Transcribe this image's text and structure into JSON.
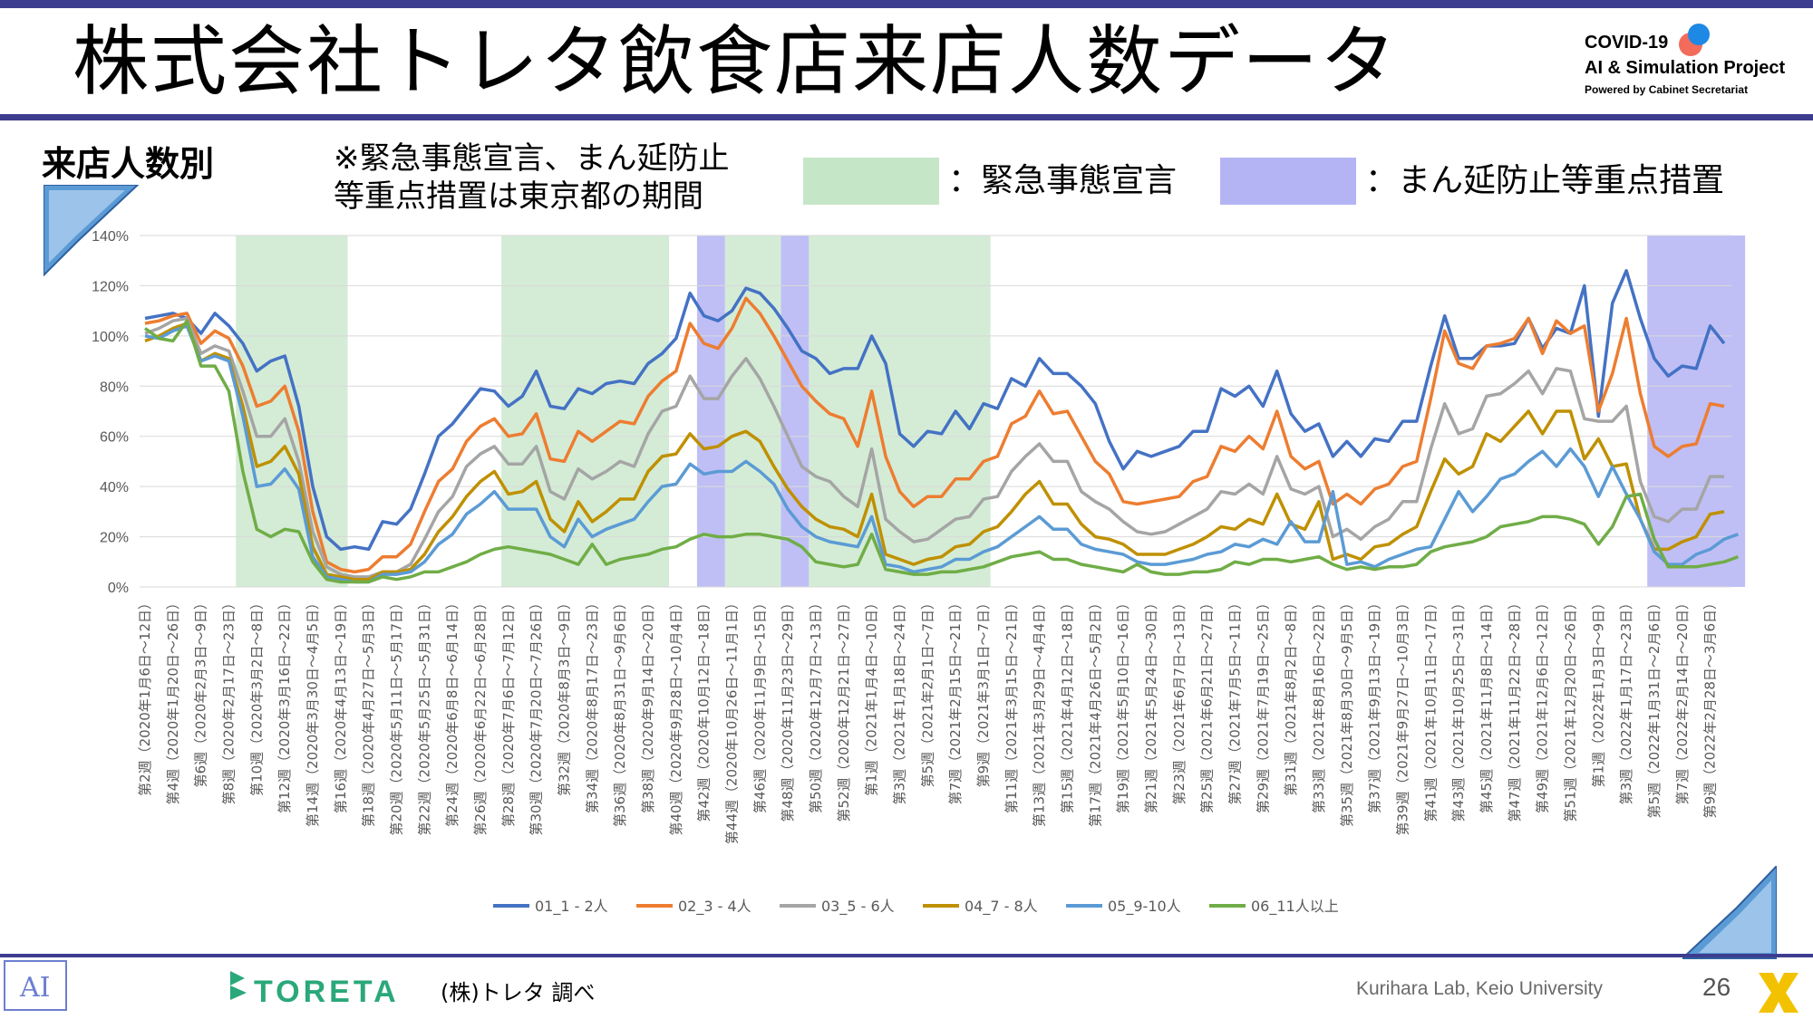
{
  "slide": {
    "title": "株式会社トレタ飲食店来店人数データ",
    "section_label": "来店人数別",
    "note_line1": "※緊急事態宣言、まん延防止",
    "note_line2": "等重点措置は東京都の期間",
    "legend_emergency": "：緊急事態宣言",
    "legend_manbou": "：まん延防止等重点措置",
    "source": "(株)トレタ 調べ",
    "credit": "Kurihara Lab, Keio University",
    "page_number": "26",
    "toreta_logo": "TORETA",
    "logo": {
      "line1": "COVID-19",
      "line2": "AI & Simulation Project",
      "line3": "Powered by Cabinet Secretariat"
    }
  },
  "colors": {
    "accent": "#3d3d8f",
    "emergency_band": "#c6e6c8",
    "manbou_band": "#b4b4f5"
  },
  "chart_data": {
    "type": "line",
    "ylim": [
      0,
      1.4
    ],
    "yticks": [
      0,
      0.2,
      0.4,
      0.6,
      0.8,
      1.0,
      1.2,
      1.4
    ],
    "ytick_labels": [
      "0%",
      "20%",
      "40%",
      "60%",
      "80%",
      "100%",
      "120%",
      "140%"
    ],
    "grid": true,
    "legend_position": "bottom",
    "x_labels": [
      "第2週（2020年1月6日～12日）",
      "第4週（2020年1月20日～26日）",
      "第6週（2020年2月3日～9日）",
      "第8週（2020年2月17日～23日）",
      "第10週（2020年3月2日～8日）",
      "第12週（2020年3月16日～22日）",
      "第14週（2020年3月30日～4月5日）",
      "第16週（2020年4月13日～19日）",
      "第18週（2020年4月27日～5月3日）",
      "第20週（2020年5月11日～5月17日）",
      "第22週（2020年5月25日～5月31日）",
      "第24週（2020年6月8日～6月14日）",
      "第26週（2020年6月22日～6月28日）",
      "第28週（2020年7月6日～7月12日）",
      "第30週（2020年7月20日～7月26日）",
      "第32週（2020年8月3日～9日）",
      "第34週（2020年8月17日～23日）",
      "第36週（2020年8月31日～9月6日）",
      "第38週（2020年9月14日～20日）",
      "第40週（2020年9月28日～10月4日）",
      "第42週（2020年10月12日～18日）",
      "第44週（2020年10月26日～11月1日）",
      "第46週（2020年11月9日～15日）",
      "第48週（2020年11月23日～29日）",
      "第50週（2020年12月7日～13日）",
      "第52週（2020年12月21日～27日）",
      "第1週（2021年1月4日～10日）",
      "第3週（2021年1月18日～24日）",
      "第5週（2021年2月1日～7日）",
      "第7週（2021年2月15日～21日）",
      "第9週（2021年3月1日～7日）",
      "第11週（2021年3月15日～21日）",
      "第13週（2021年3月29日～4月4日）",
      "第15週（2021年4月12日～18日）",
      "第17週（2021年4月26日～5月2日）",
      "第19週（2021年5月10日～16日）",
      "第21週（2021年5月24日～30日）",
      "第23週（2021年6月7日～13日）",
      "第25週（2021年6月21日～27日）",
      "第27週（2021年7月5日～11日）",
      "第29週（2021年7月19日～25日）",
      "第31週（2021年8月2日～8日）",
      "第33週（2021年8月16日～22日）",
      "第35週（2021年8月30日～9月5日）",
      "第37週（2021年9月13日～19日）",
      "第39週（2021年9月27日～10月3日）",
      "第41週（2021年10月11日～17日）",
      "第43週（2021年10月25日～31日）",
      "第45週（2021年11月8日～14日）",
      "第47週（2021年11月22日～28日）",
      "第49週（2021年12月6日～12日）",
      "第51週（2021年12月20日～26日）",
      "第1週（2022年1月3日～9日）",
      "第3週（2022年1月17日～23日）",
      "第5週（2022年1月31日～2月6日）",
      "第7週（2022年2月14日～20日）",
      "第9週（2022年2月28日～3月6日）"
    ],
    "emergency_periods": [
      [
        7,
        14
      ],
      [
        26,
        37
      ],
      [
        42,
        45
      ],
      [
        48,
        60
      ]
    ],
    "manbou_periods": [
      [
        40,
        41
      ],
      [
        46,
        47
      ],
      [
        108,
        114
      ]
    ],
    "series": [
      {
        "name": "01_1 - 2人",
        "color": "#4472c4",
        "values": [
          1.07,
          1.08,
          1.09,
          1.07,
          1.01,
          1.09,
          1.04,
          0.97,
          0.86,
          0.9,
          0.92,
          0.72,
          0.4,
          0.2,
          0.15,
          0.16,
          0.15,
          0.26,
          0.25,
          0.31,
          0.45,
          0.6,
          0.65,
          0.72,
          0.79,
          0.78,
          0.72,
          0.76,
          0.86,
          0.72,
          0.71,
          0.79,
          0.77,
          0.81,
          0.82,
          0.81,
          0.89,
          0.93,
          0.99,
          1.17,
          1.08,
          1.06,
          1.1,
          1.19,
          1.17,
          1.11,
          1.03,
          0.94,
          0.91,
          0.85,
          0.87,
          0.87,
          1.0,
          0.89,
          0.61,
          0.56,
          0.62,
          0.61,
          0.7,
          0.63,
          0.73,
          0.71,
          0.83,
          0.8,
          0.91,
          0.85,
          0.85,
          0.8,
          0.73,
          0.58,
          0.47,
          0.54,
          0.52,
          0.54,
          0.56,
          0.62,
          0.62,
          0.79,
          0.76,
          0.8,
          0.72,
          0.86,
          0.69,
          0.62,
          0.65,
          0.52,
          0.58,
          0.52,
          0.59,
          0.58,
          0.66,
          0.66,
          0.88,
          1.08,
          0.91,
          0.91,
          0.96,
          0.96,
          0.97,
          1.07,
          0.95,
          1.03,
          1.01,
          1.2,
          0.68,
          1.13,
          1.26,
          1.07,
          0.91,
          0.84,
          0.88,
          0.87,
          1.04,
          0.97
        ]
      },
      {
        "name": "02_3 - 4人",
        "color": "#ed7d31",
        "values": [
          1.05,
          1.06,
          1.08,
          1.09,
          0.97,
          1.02,
          0.99,
          0.88,
          0.72,
          0.74,
          0.8,
          0.62,
          0.3,
          0.1,
          0.07,
          0.06,
          0.07,
          0.12,
          0.12,
          0.17,
          0.3,
          0.42,
          0.47,
          0.58,
          0.64,
          0.67,
          0.6,
          0.61,
          0.69,
          0.51,
          0.5,
          0.62,
          0.58,
          0.62,
          0.66,
          0.65,
          0.76,
          0.82,
          0.86,
          1.05,
          0.97,
          0.95,
          1.03,
          1.15,
          1.09,
          1.0,
          0.9,
          0.8,
          0.74,
          0.69,
          0.67,
          0.56,
          0.78,
          0.52,
          0.38,
          0.32,
          0.36,
          0.36,
          0.43,
          0.43,
          0.5,
          0.52,
          0.65,
          0.68,
          0.78,
          0.69,
          0.7,
          0.6,
          0.5,
          0.45,
          0.34,
          0.33,
          0.34,
          0.35,
          0.36,
          0.42,
          0.44,
          0.56,
          0.54,
          0.6,
          0.55,
          0.7,
          0.52,
          0.47,
          0.5,
          0.33,
          0.37,
          0.33,
          0.39,
          0.41,
          0.48,
          0.5,
          0.75,
          1.02,
          0.89,
          0.87,
          0.96,
          0.97,
          0.99,
          1.07,
          0.93,
          1.06,
          1.01,
          1.04,
          0.7,
          0.85,
          1.07,
          0.77,
          0.56,
          0.52,
          0.56,
          0.57,
          0.73,
          0.72
        ]
      },
      {
        "name": "03_5 - 6人",
        "color": "#a5a5a5",
        "values": [
          1.01,
          1.03,
          1.06,
          1.07,
          0.93,
          0.96,
          0.94,
          0.78,
          0.6,
          0.6,
          0.67,
          0.5,
          0.22,
          0.08,
          0.05,
          0.04,
          0.04,
          0.06,
          0.06,
          0.09,
          0.19,
          0.3,
          0.36,
          0.48,
          0.53,
          0.56,
          0.49,
          0.49,
          0.56,
          0.38,
          0.35,
          0.47,
          0.43,
          0.46,
          0.5,
          0.48,
          0.61,
          0.7,
          0.72,
          0.84,
          0.75,
          0.75,
          0.84,
          0.91,
          0.83,
          0.72,
          0.6,
          0.48,
          0.44,
          0.42,
          0.36,
          0.32,
          0.55,
          0.27,
          0.22,
          0.18,
          0.19,
          0.23,
          0.27,
          0.28,
          0.35,
          0.36,
          0.46,
          0.52,
          0.57,
          0.5,
          0.5,
          0.38,
          0.34,
          0.31,
          0.26,
          0.22,
          0.21,
          0.22,
          0.25,
          0.28,
          0.31,
          0.38,
          0.37,
          0.41,
          0.37,
          0.52,
          0.39,
          0.37,
          0.4,
          0.2,
          0.23,
          0.19,
          0.24,
          0.27,
          0.34,
          0.34,
          0.55,
          0.73,
          0.61,
          0.63,
          0.76,
          0.77,
          0.81,
          0.86,
          0.77,
          0.87,
          0.86,
          0.67,
          0.66,
          0.66,
          0.72,
          0.42,
          0.28,
          0.26,
          0.31,
          0.31,
          0.44,
          0.44
        ]
      },
      {
        "name": "04_7 - 8人",
        "color": "#bf9000",
        "values": [
          0.98,
          1.0,
          1.03,
          1.05,
          0.9,
          0.93,
          0.91,
          0.72,
          0.48,
          0.5,
          0.56,
          0.45,
          0.16,
          0.05,
          0.04,
          0.03,
          0.03,
          0.06,
          0.06,
          0.07,
          0.13,
          0.22,
          0.28,
          0.36,
          0.42,
          0.46,
          0.37,
          0.38,
          0.42,
          0.27,
          0.22,
          0.34,
          0.26,
          0.3,
          0.35,
          0.35,
          0.46,
          0.52,
          0.53,
          0.61,
          0.55,
          0.56,
          0.6,
          0.62,
          0.58,
          0.48,
          0.39,
          0.32,
          0.27,
          0.24,
          0.23,
          0.2,
          0.37,
          0.13,
          0.11,
          0.09,
          0.11,
          0.12,
          0.16,
          0.17,
          0.22,
          0.24,
          0.3,
          0.37,
          0.42,
          0.33,
          0.33,
          0.25,
          0.2,
          0.19,
          0.17,
          0.13,
          0.13,
          0.13,
          0.15,
          0.17,
          0.2,
          0.24,
          0.23,
          0.27,
          0.25,
          0.37,
          0.25,
          0.23,
          0.34,
          0.11,
          0.13,
          0.11,
          0.16,
          0.17,
          0.21,
          0.24,
          0.38,
          0.51,
          0.45,
          0.48,
          0.61,
          0.58,
          0.64,
          0.7,
          0.61,
          0.7,
          0.7,
          0.51,
          0.59,
          0.48,
          0.49,
          0.27,
          0.15,
          0.15,
          0.18,
          0.2,
          0.29,
          0.3
        ]
      },
      {
        "name": "05_9-10人",
        "color": "#5b9bd5",
        "values": [
          1.0,
          0.99,
          1.02,
          1.04,
          0.9,
          0.92,
          0.9,
          0.68,
          0.4,
          0.41,
          0.47,
          0.39,
          0.12,
          0.04,
          0.03,
          0.02,
          0.02,
          0.05,
          0.05,
          0.06,
          0.1,
          0.17,
          0.21,
          0.29,
          0.33,
          0.38,
          0.31,
          0.31,
          0.31,
          0.2,
          0.16,
          0.27,
          0.2,
          0.23,
          0.25,
          0.27,
          0.34,
          0.4,
          0.41,
          0.49,
          0.45,
          0.46,
          0.46,
          0.5,
          0.46,
          0.41,
          0.31,
          0.24,
          0.2,
          0.18,
          0.17,
          0.16,
          0.28,
          0.09,
          0.08,
          0.06,
          0.07,
          0.08,
          0.11,
          0.11,
          0.14,
          0.16,
          0.2,
          0.24,
          0.28,
          0.23,
          0.23,
          0.17,
          0.15,
          0.14,
          0.13,
          0.1,
          0.09,
          0.09,
          0.1,
          0.11,
          0.13,
          0.14,
          0.17,
          0.16,
          0.19,
          0.17,
          0.26,
          0.18,
          0.18,
          0.38,
          0.09,
          0.1,
          0.08,
          0.11,
          0.13,
          0.15,
          0.16,
          0.27,
          0.38,
          0.3,
          0.36,
          0.43,
          0.45,
          0.5,
          0.54,
          0.48,
          0.55,
          0.48,
          0.36,
          0.48,
          0.37,
          0.27,
          0.14,
          0.09,
          0.09,
          0.13,
          0.15,
          0.19,
          0.21
        ]
      },
      {
        "name": "06_11人以上",
        "color": "#70ad47",
        "values": [
          1.03,
          0.99,
          0.98,
          1.06,
          0.88,
          0.88,
          0.78,
          0.46,
          0.23,
          0.2,
          0.23,
          0.22,
          0.1,
          0.03,
          0.02,
          0.02,
          0.02,
          0.04,
          0.03,
          0.04,
          0.06,
          0.06,
          0.08,
          0.1,
          0.13,
          0.15,
          0.16,
          0.15,
          0.14,
          0.13,
          0.11,
          0.09,
          0.17,
          0.09,
          0.11,
          0.12,
          0.13,
          0.15,
          0.16,
          0.19,
          0.21,
          0.2,
          0.2,
          0.21,
          0.21,
          0.2,
          0.19,
          0.16,
          0.1,
          0.09,
          0.08,
          0.09,
          0.21,
          0.07,
          0.06,
          0.05,
          0.05,
          0.06,
          0.06,
          0.07,
          0.08,
          0.1,
          0.12,
          0.13,
          0.14,
          0.11,
          0.11,
          0.09,
          0.08,
          0.07,
          0.06,
          0.09,
          0.06,
          0.05,
          0.05,
          0.06,
          0.06,
          0.07,
          0.1,
          0.09,
          0.11,
          0.11,
          0.1,
          0.11,
          0.12,
          0.09,
          0.07,
          0.08,
          0.07,
          0.08,
          0.08,
          0.09,
          0.14,
          0.16,
          0.17,
          0.18,
          0.2,
          0.24,
          0.25,
          0.26,
          0.28,
          0.28,
          0.27,
          0.25,
          0.17,
          0.24,
          0.36,
          0.37,
          0.19,
          0.08,
          0.08,
          0.08,
          0.09,
          0.1,
          0.12
        ]
      }
    ]
  }
}
